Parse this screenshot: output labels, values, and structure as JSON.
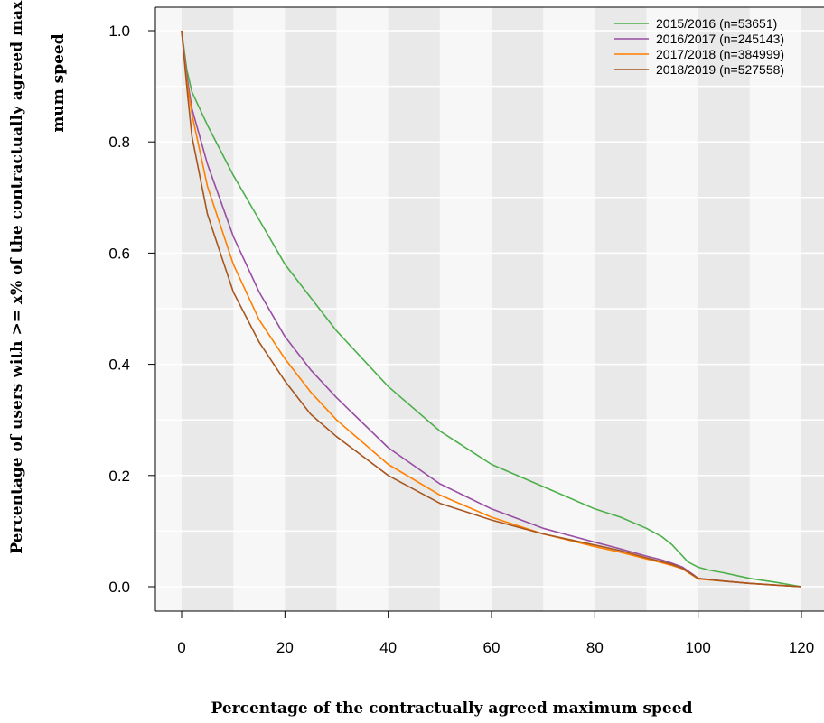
{
  "chart_data": {
    "type": "line",
    "xlabel": "Percentage of the contractually agreed maximum speed",
    "ylabel_line1": "Percentage of users with >= x% of the contractually agreed maxi",
    "ylabel_line2": "mum speed",
    "xlim": [
      0,
      120
    ],
    "ylim": [
      0,
      1
    ],
    "x_ticks": [
      "0",
      "20",
      "40",
      "60",
      "80",
      "100",
      "120"
    ],
    "y_ticks": [
      "0.0",
      "0.2",
      "0.4",
      "0.6",
      "0.8",
      "1.0"
    ],
    "background_bands": "alternating shaded vertical bands every 10 units",
    "legend_position": "top-right",
    "series": [
      {
        "name": "2015/2016 (n=53651)",
        "color": "#4daf4a",
        "x": [
          0,
          1,
          2,
          5,
          10,
          15,
          20,
          25,
          30,
          40,
          50,
          60,
          70,
          80,
          85,
          90,
          93,
          95,
          96,
          97,
          98,
          99,
          100,
          102,
          105,
          110,
          115,
          120
        ],
        "y": [
          1.0,
          0.93,
          0.89,
          0.83,
          0.74,
          0.66,
          0.58,
          0.52,
          0.46,
          0.36,
          0.28,
          0.22,
          0.18,
          0.14,
          0.125,
          0.105,
          0.09,
          0.075,
          0.065,
          0.055,
          0.045,
          0.04,
          0.035,
          0.03,
          0.025,
          0.015,
          0.008,
          0.0
        ]
      },
      {
        "name": "2016/2017 (n=245143)",
        "color": "#984ea3",
        "x": [
          0,
          1,
          2,
          5,
          10,
          15,
          20,
          25,
          30,
          40,
          50,
          60,
          70,
          80,
          85,
          90,
          93,
          95,
          97,
          99,
          100,
          105,
          110,
          115,
          120
        ],
        "y": [
          1.0,
          0.92,
          0.86,
          0.76,
          0.63,
          0.53,
          0.45,
          0.39,
          0.34,
          0.25,
          0.185,
          0.14,
          0.105,
          0.08,
          0.068,
          0.055,
          0.048,
          0.042,
          0.035,
          0.022,
          0.015,
          0.01,
          0.006,
          0.003,
          0.0
        ]
      },
      {
        "name": "2017/2018 (n=384999)",
        "color": "#ff7f00",
        "x": [
          0,
          1,
          2,
          5,
          10,
          15,
          20,
          25,
          30,
          40,
          50,
          60,
          70,
          80,
          85,
          90,
          93,
          95,
          97,
          99,
          100,
          105,
          110,
          115,
          120
        ],
        "y": [
          1.0,
          0.91,
          0.85,
          0.72,
          0.58,
          0.48,
          0.41,
          0.35,
          0.3,
          0.22,
          0.165,
          0.125,
          0.095,
          0.072,
          0.062,
          0.05,
          0.043,
          0.038,
          0.032,
          0.02,
          0.014,
          0.01,
          0.006,
          0.003,
          0.0
        ]
      },
      {
        "name": "2018/2019 (n=527558)",
        "color": "#a6561e",
        "x": [
          0,
          1,
          2,
          5,
          10,
          15,
          20,
          25,
          30,
          40,
          50,
          60,
          70,
          80,
          85,
          90,
          93,
          95,
          97,
          99,
          100,
          105,
          110,
          115,
          120
        ],
        "y": [
          1.0,
          0.9,
          0.81,
          0.67,
          0.53,
          0.44,
          0.37,
          0.31,
          0.27,
          0.2,
          0.15,
          0.12,
          0.095,
          0.075,
          0.065,
          0.052,
          0.045,
          0.04,
          0.033,
          0.021,
          0.015,
          0.01,
          0.006,
          0.003,
          0.0
        ]
      }
    ]
  }
}
